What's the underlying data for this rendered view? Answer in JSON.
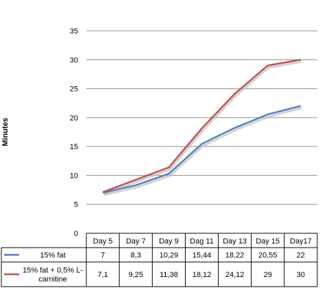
{
  "chart_data": {
    "type": "line",
    "title": "",
    "xlabel": "",
    "ylabel": "Minutes",
    "ylim": [
      0,
      35
    ],
    "yticks": [
      0,
      5,
      10,
      15,
      20,
      25,
      30,
      35
    ],
    "grid": true,
    "legend": "data-table",
    "categories": [
      "Day 5",
      "Day 7",
      "Day 9",
      "Dag 11",
      "Day 13",
      "Day 15",
      "Day17"
    ],
    "series": [
      {
        "name": "15% fat",
        "name_lines": [
          "15% fat"
        ],
        "color": "#4F81BD",
        "values": [
          7,
          8.3,
          10.29,
          15.44,
          18.22,
          20.55,
          22
        ],
        "labels": [
          "7",
          "8,3",
          "10,29",
          "15,44",
          "18,22",
          "20,55",
          "22"
        ]
      },
      {
        "name": "15% fat + 0,5% L-carnitine",
        "name_lines": [
          "15% fat + 0,5% L-",
          "carnitine"
        ],
        "color": "#C0504D",
        "values": [
          7.1,
          9.25,
          11.38,
          18.12,
          24.12,
          29,
          30
        ],
        "labels": [
          "7,1",
          "9,25",
          "11,38",
          "18,12",
          "24,12",
          "29",
          "30"
        ]
      }
    ]
  }
}
